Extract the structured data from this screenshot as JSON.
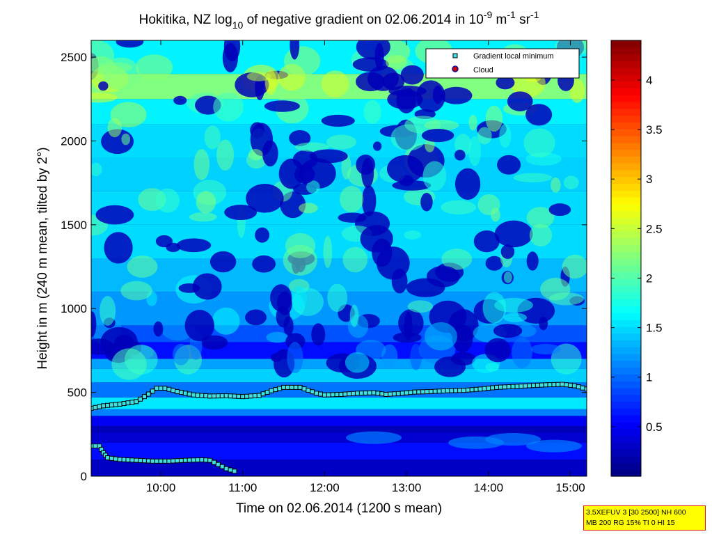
{
  "chart_data": {
    "type": "heatmap",
    "title_parts": {
      "a": "Hokitika, NZ log",
      "a_sub": "10",
      "b": " of negative gradient on 02.06.2014 in 10",
      "b_sup": "-9",
      "c": " m",
      "c_sup": "-1",
      "d": " sr",
      "d_sup": "-1"
    },
    "xlabel": "Time on 02.06.2014 (1200 s mean)",
    "ylabel": "Height in m (240 m mean, tilted by 2°)",
    "x_range_hours": [
      9.15,
      15.2
    ],
    "ylim": [
      0,
      2600
    ],
    "x_ticks": [
      "10:00",
      "11:00",
      "12:00",
      "13:00",
      "14:00",
      "15:00"
    ],
    "x_tick_hours": [
      10,
      11,
      12,
      13,
      14,
      15
    ],
    "y_ticks": [
      0,
      500,
      1000,
      1500,
      2000,
      2500
    ],
    "colorbar": {
      "range": [
        0,
        4.4
      ],
      "ticks": [
        0.5,
        1,
        1.5,
        2,
        2.5,
        3,
        3.5,
        4
      ],
      "tick_labels": [
        "0.5",
        "1",
        "1.5",
        "2",
        "2.5",
        "3",
        "3.5",
        "4"
      ],
      "colormap": "jet"
    },
    "legend": {
      "placement": "top-right",
      "entries": [
        {
          "label": "Gradient local minimum",
          "marker": "square",
          "color": "#40e0e0"
        },
        {
          "label": "Cloud",
          "marker": "circle",
          "color": "#cc0000"
        }
      ]
    },
    "series": [
      {
        "name": "Gradient local minimum",
        "hours": [
          9.15,
          9.3,
          9.5,
          9.7,
          9.85,
          9.95,
          10.05,
          10.2,
          10.4,
          10.6,
          10.8,
          11.0,
          11.2,
          11.35,
          11.5,
          11.7,
          11.9,
          12.0,
          12.2,
          12.4,
          12.6,
          12.75,
          12.9,
          13.1,
          13.3,
          13.5,
          13.7,
          13.9,
          14.1,
          14.3,
          14.5,
          14.7,
          14.9,
          15.05,
          15.2
        ],
        "heights": [
          405,
          420,
          430,
          445,
          490,
          525,
          525,
          505,
          485,
          478,
          480,
          475,
          482,
          510,
          530,
          530,
          495,
          485,
          488,
          495,
          498,
          488,
          493,
          502,
          505,
          510,
          512,
          520,
          530,
          535,
          540,
          545,
          548,
          540,
          520
        ]
      },
      {
        "name": "Gradient local minimum (lower)",
        "hours": [
          9.15,
          9.25,
          9.3,
          9.35,
          9.5,
          9.7,
          9.9,
          10.1,
          10.3,
          10.5,
          10.6,
          10.7,
          10.8,
          10.9
        ],
        "heights": [
          180,
          180,
          140,
          110,
          100,
          95,
          90,
          90,
          95,
          98,
          95,
          70,
          45,
          30
        ]
      }
    ],
    "heatmap_bands": {
      "height_breaks": [
        0,
        100,
        200,
        260,
        300,
        360,
        400,
        470,
        560,
        640,
        700,
        800,
        900,
        1100,
        1300,
        1500,
        1700,
        1900,
        2100,
        2250,
        2400,
        2600
      ],
      "values": [
        0.3,
        0.6,
        0.35,
        0.25,
        0.5,
        1.1,
        1.55,
        1.05,
        1.45,
        1.25,
        0.6,
        0.9,
        1.2,
        1.35,
        1.5,
        1.5,
        1.45,
        1.5,
        1.6,
        2.2,
        1.6
      ]
    }
  },
  "info_box": {
    "line1": "3.5XEFUV 3 [30 2500] NH 600",
    "line2": "MB 200 RG 15% TI 0 HI 15"
  }
}
